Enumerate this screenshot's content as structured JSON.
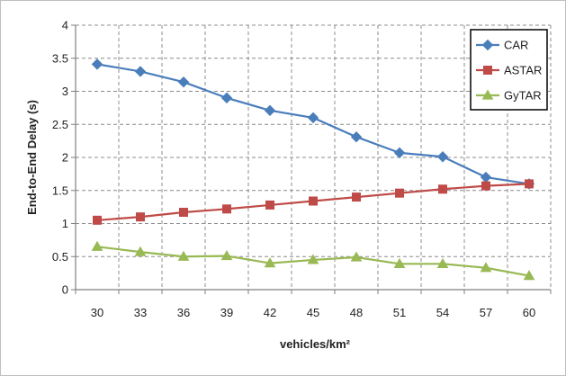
{
  "chart_data": {
    "type": "line",
    "title": "",
    "xlabel": "vehicles/km²",
    "ylabel": "End-to-End Delay (s)",
    "categories": [
      "30",
      "33",
      "36",
      "39",
      "42",
      "45",
      "48",
      "51",
      "54",
      "57",
      "60"
    ],
    "y_ticks": [
      "0",
      "0.5",
      "1",
      "1.5",
      "2",
      "2.5",
      "3",
      "3.5",
      "4"
    ],
    "ylim": [
      0,
      4
    ],
    "grid": "dashed vertical and horizontal",
    "legend_position": "top-right",
    "series": [
      {
        "name": "CAR",
        "marker": "diamond",
        "color": "#4a7ebb",
        "values": [
          3.41,
          3.3,
          3.14,
          2.9,
          2.71,
          2.6,
          2.31,
          2.07,
          2.01,
          1.7,
          1.6
        ]
      },
      {
        "name": "ASTAR",
        "marker": "square",
        "color": "#be4b48",
        "values": [
          1.05,
          1.1,
          1.17,
          1.22,
          1.28,
          1.34,
          1.4,
          1.46,
          1.52,
          1.57,
          1.6
        ]
      },
      {
        "name": "GyTAR",
        "marker": "triangle",
        "color": "#98b954",
        "values": [
          0.65,
          0.57,
          0.5,
          0.51,
          0.4,
          0.45,
          0.49,
          0.39,
          0.39,
          0.33,
          0.21
        ]
      }
    ]
  }
}
